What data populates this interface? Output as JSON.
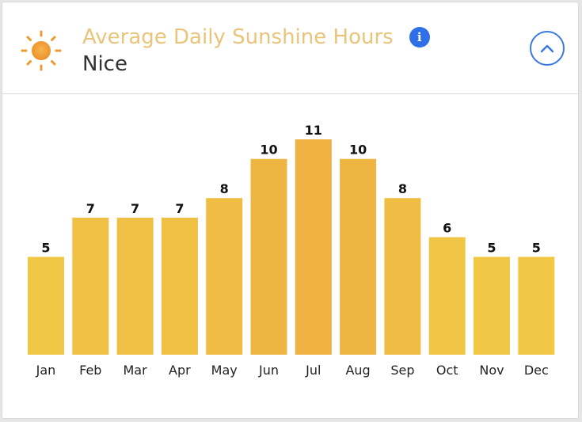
{
  "header": {
    "title": "Average Daily Sunshine Hours",
    "subtitle": "Nice",
    "info_glyph": "i",
    "icons": {
      "weather": "sun-icon",
      "info": "info-icon",
      "collapse": "chevron-up-icon"
    }
  },
  "colors": {
    "title": "#e8c57a",
    "info": "#2f6fe8",
    "collapse": "#3a78e2",
    "bar_low": "#f0c845",
    "bar_high": "#efb142"
  },
  "chart_data": {
    "type": "bar",
    "categories": [
      "Jan",
      "Feb",
      "Mar",
      "Apr",
      "May",
      "Jun",
      "Jul",
      "Aug",
      "Sep",
      "Oct",
      "Nov",
      "Dec"
    ],
    "values": [
      5,
      7,
      7,
      7,
      8,
      10,
      11,
      10,
      8,
      6,
      5,
      5
    ],
    "title": "Average Daily Sunshine Hours",
    "subtitle": "Nice",
    "xlabel": "",
    "ylabel": "",
    "ylim": [
      0,
      11
    ],
    "grid": false,
    "legend": "none",
    "data_labels": true
  }
}
